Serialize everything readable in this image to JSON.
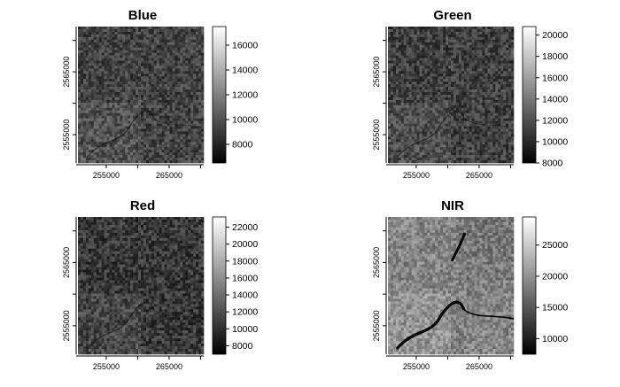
{
  "chart_data": [
    {
      "type": "heatmap",
      "title": "Blue",
      "xlim": [
        250500,
        270500
      ],
      "ylim": [
        2550500,
        2572200
      ],
      "x_ticks": [
        255000,
        265000
      ],
      "y_ticks": [
        2555000,
        2565000
      ],
      "legend": {
        "min": 6500,
        "max": 17500,
        "ticks": [
          8000,
          10000,
          12000,
          14000,
          16000
        ]
      },
      "brightness": 0.26,
      "river": false
    },
    {
      "type": "heatmap",
      "title": "Green",
      "xlim": [
        250500,
        270500
      ],
      "ylim": [
        2550500,
        2572200
      ],
      "x_ticks": [
        255000,
        265000
      ],
      "y_ticks": [
        2555000,
        2565000
      ],
      "legend": {
        "min": 8000,
        "max": 20800,
        "ticks": [
          8000,
          10000,
          12000,
          14000,
          16000,
          18000,
          20000
        ]
      },
      "brightness": 0.25,
      "river": false
    },
    {
      "type": "heatmap",
      "title": "Red",
      "xlim": [
        250500,
        270500
      ],
      "ylim": [
        2550500,
        2572200
      ],
      "x_ticks": [
        255000,
        265000
      ],
      "y_ticks": [
        2555000,
        2565000
      ],
      "legend": {
        "min": 7000,
        "max": 23200,
        "ticks": [
          8000,
          10000,
          12000,
          14000,
          16000,
          18000,
          20000,
          22000
        ]
      },
      "brightness": 0.22,
      "river": false
    },
    {
      "type": "heatmap",
      "title": "NIR",
      "xlim": [
        250500,
        270500
      ],
      "ylim": [
        2550500,
        2572200
      ],
      "x_ticks": [
        255000,
        265000
      ],
      "y_ticks": [
        2555000,
        2565000
      ],
      "legend": {
        "min": 7500,
        "max": 29500,
        "ticks": [
          10000,
          15000,
          20000,
          25000
        ]
      },
      "brightness": 0.52,
      "river": true
    }
  ]
}
